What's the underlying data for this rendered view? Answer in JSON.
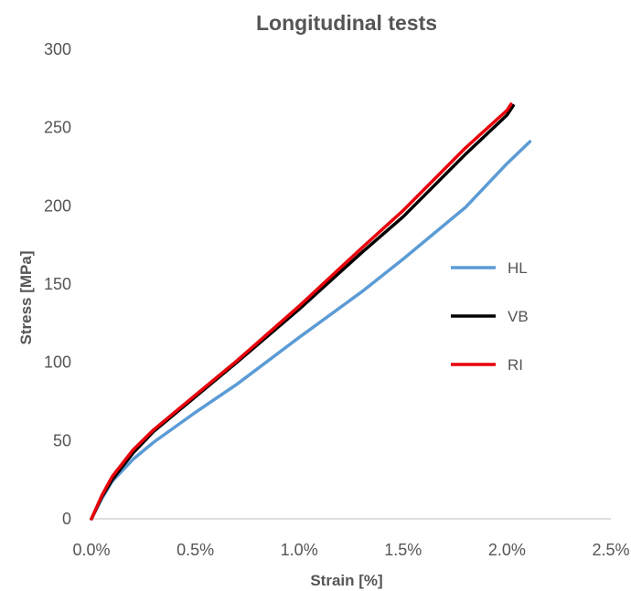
{
  "chart_data": {
    "type": "line",
    "title": "Longitudinal tests",
    "xlabel": "Strain [%]",
    "ylabel": "Stress [MPa]",
    "xlim": [
      0,
      2.5
    ],
    "ylim": [
      0,
      300
    ],
    "x_ticks": [
      "0.0%",
      "0.5%",
      "1.0%",
      "1.5%",
      "2.0%",
      "2.5%"
    ],
    "y_ticks": [
      "0",
      "50",
      "100",
      "150",
      "200",
      "250",
      "300"
    ],
    "grid": false,
    "legend_position": "right",
    "series": [
      {
        "name": "HL",
        "color": "#5b9bd5",
        "x": [
          0,
          0.05,
          0.1,
          0.2,
          0.3,
          0.5,
          0.7,
          1.0,
          1.3,
          1.5,
          1.8,
          2.0,
          2.11
        ],
        "y": [
          0,
          13,
          24,
          38,
          49,
          68,
          86,
          116,
          145,
          166,
          199,
          227,
          241
        ]
      },
      {
        "name": "VB",
        "color": "#000000",
        "x": [
          0,
          0.05,
          0.1,
          0.2,
          0.3,
          0.5,
          0.7,
          1.0,
          1.3,
          1.5,
          1.8,
          2.0,
          2.03
        ],
        "y": [
          0,
          14,
          25,
          42,
          56,
          78,
          100,
          134,
          170,
          193,
          233,
          258,
          264
        ]
      },
      {
        "name": "RI",
        "color": "#e8000b",
        "x": [
          0,
          0.05,
          0.1,
          0.2,
          0.3,
          0.5,
          0.7,
          1.0,
          1.3,
          1.5,
          1.8,
          2.0,
          2.02
        ],
        "y": [
          0,
          15,
          27,
          44,
          57,
          79,
          101,
          136,
          173,
          197,
          237,
          261,
          265
        ]
      }
    ]
  }
}
